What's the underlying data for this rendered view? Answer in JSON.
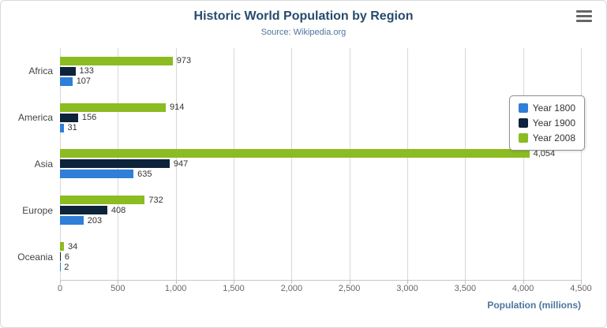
{
  "header": {
    "title": "Historic World Population by Region",
    "subtitle": "Source: Wikipedia.org"
  },
  "export_menu": {
    "icon": "hamburger-icon"
  },
  "chart_data": {
    "type": "bar",
    "orientation": "horizontal",
    "title": "Historic World Population by Region",
    "subtitle": "Source: Wikipedia.org",
    "categories": [
      "Africa",
      "America",
      "Asia",
      "Europe",
      "Oceania"
    ],
    "series": [
      {
        "name": "Year 1800",
        "color": "#2f7ed8",
        "values": [
          107,
          31,
          635,
          203,
          2
        ]
      },
      {
        "name": "Year 1900",
        "color": "#0d233a",
        "values": [
          133,
          156,
          947,
          408,
          6
        ]
      },
      {
        "name": "Year 2008",
        "color": "#8bbc21",
        "values": [
          973,
          914,
          4054,
          732,
          34
        ]
      }
    ],
    "bar_order_top_to_bottom": [
      "Year 2008",
      "Year 1900",
      "Year 1800"
    ],
    "xlabel": "Population (millions)",
    "ylabel": "",
    "xlim": [
      0,
      4500
    ],
    "xticks": [
      0,
      500,
      1000,
      1500,
      2000,
      2500,
      3000,
      3500,
      4000,
      4500
    ],
    "xtick_labels": [
      "0",
      "500",
      "1,000",
      "1,500",
      "2,000",
      "2,500",
      "3,000",
      "3,500",
      "4,000",
      "4,500"
    ],
    "grid": true,
    "legend_position": "right",
    "data_labels": true
  },
  "colors": {
    "title": "#274b6d",
    "subtitle": "#4d759e",
    "axis_title": "#4d759e",
    "gridline": "#d8d8d8",
    "tick_label": "#666666",
    "category_label": "#444444",
    "data_label": "#333333"
  }
}
